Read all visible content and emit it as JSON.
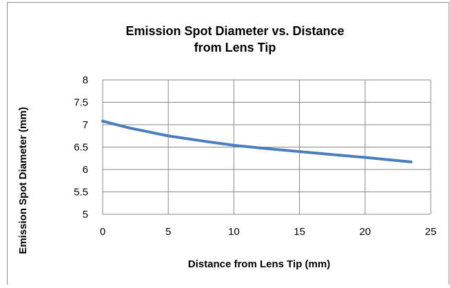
{
  "chart_data": {
    "type": "line",
    "title_lines": [
      "Emission Spot Diameter vs. Distance",
      "from Lens Tip"
    ],
    "xlabel": "Distance  from Lens Tip  (mm)",
    "ylabel": "Emission Spot Diameter  (mm)",
    "xlim": [
      0,
      25
    ],
    "ylim": [
      5,
      8
    ],
    "xticks": [
      "0",
      "5",
      "10",
      "15",
      "20",
      "25"
    ],
    "yticks": [
      "5",
      "5.5",
      "6",
      "6.5",
      "7",
      "7.5",
      "8"
    ],
    "grid": true,
    "legend": "none",
    "series": [
      {
        "color": "#4A7EBB",
        "x": [
          0,
          2,
          5,
          8,
          10,
          12,
          15,
          18,
          20,
          23.5
        ],
        "y": [
          7.08,
          6.93,
          6.75,
          6.62,
          6.54,
          6.48,
          6.4,
          6.32,
          6.27,
          6.17
        ]
      }
    ]
  }
}
